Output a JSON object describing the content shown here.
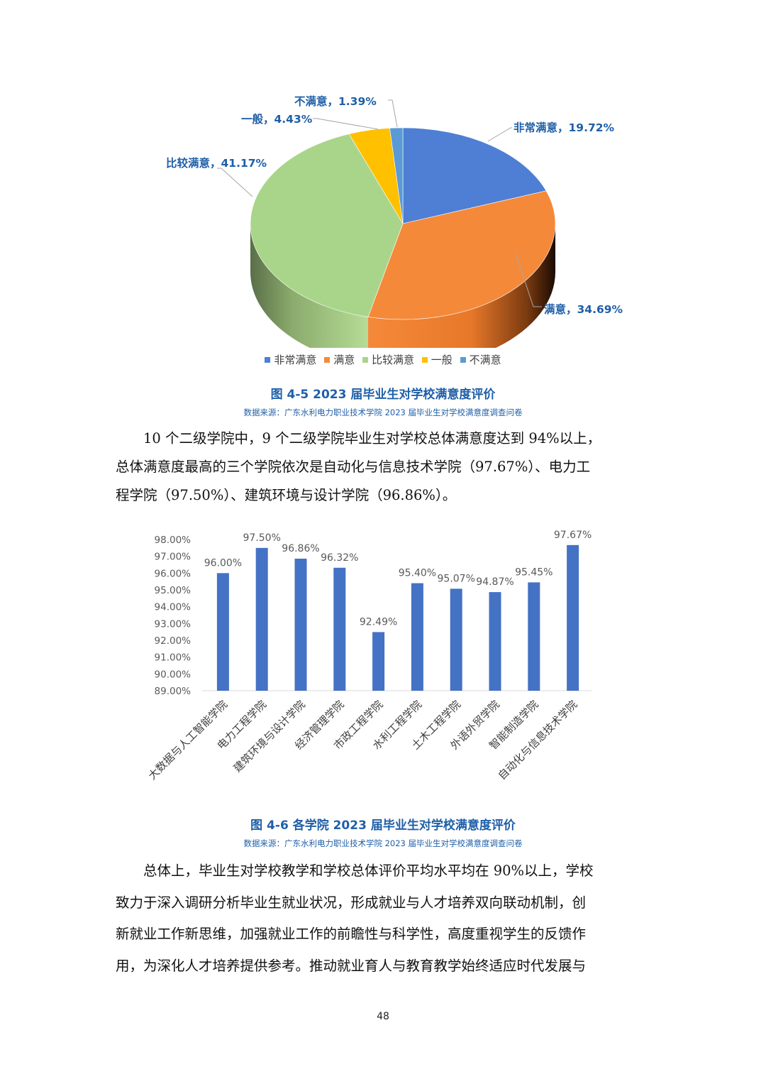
{
  "pie_chart": {
    "slices": [
      {
        "name": "非常满意",
        "label": "非常满意，19.72%",
        "value": 19.72,
        "color": "#4f7fd4"
      },
      {
        "name": "满意",
        "label": "满意，34.69%",
        "value": 34.69,
        "color": "#f5893a"
      },
      {
        "name": "比较满意",
        "label": "比较满意，41.17%",
        "value": 41.17,
        "color": "#a9d58a"
      },
      {
        "name": "一般",
        "label": "一般，4.43%",
        "value": 4.43,
        "color": "#ffc000"
      },
      {
        "name": "不满意",
        "label": "不满意，1.39%",
        "value": 1.39,
        "color": "#5b9bd5"
      }
    ],
    "legend": [
      "非常满意",
      "满意",
      "比较满意",
      "一般",
      "不满意"
    ]
  },
  "figure_4_5": {
    "caption": "图 4-5 2023 届毕业生对学校满意度评价",
    "source": "数据来源：广东水利电力职业技术学院 2023 届毕业生对学校满意度调查问卷"
  },
  "paragraph_1": {
    "lines": [
      "10 个二级学院中，9 个二级学院毕业生对学校总体满意度达到 94%以上，",
      "总体满意度最高的三个学院依次是自动化与信息技术学院（97.67%）、电力工",
      "程学院（97.50%）、建筑环境与设计学院（96.86%）。"
    ]
  },
  "chart_data": [
    {
      "type": "pie",
      "categories": [
        "非常满意",
        "满意",
        "比较满意",
        "一般",
        "不满意"
      ],
      "values": [
        19.72,
        34.69,
        41.17,
        4.43,
        1.39
      ],
      "legend_position": "bottom"
    },
    {
      "type": "bar",
      "categories": [
        "大数据与人工智能学院",
        "电力工程学院",
        "建筑环境与设计学院",
        "经济管理学院",
        "市政工程学院",
        "水利工程学院",
        "土木工程学院",
        "外语外贸学院",
        "智能制造学院",
        "自动化与信息技术学院"
      ],
      "values": [
        96.0,
        97.5,
        96.86,
        96.32,
        92.49,
        95.4,
        95.07,
        94.87,
        95.45,
        97.67
      ],
      "value_labels": [
        "96.00%",
        "97.50%",
        "96.86%",
        "96.32%",
        "92.49%",
        "95.40%",
        "95.07%",
        "94.87%",
        "95.45%",
        "97.67%"
      ],
      "ylim": [
        89,
        98
      ],
      "y_ticks": [
        "89.00%",
        "90.00%",
        "91.00%",
        "92.00%",
        "93.00%",
        "94.00%",
        "95.00%",
        "96.00%",
        "97.00%",
        "98.00%"
      ],
      "bar_color": "#4472c4",
      "grid": false
    }
  ],
  "figure_4_6": {
    "caption": "图 4-6 各学院 2023 届毕业生对学校满意度评价",
    "source": "数据来源：广东水利电力职业技术学院 2023 届毕业生对学校满意度调查问卷"
  },
  "paragraph_2": {
    "lines": [
      "总体上，毕业生对学校教学和学校总体评价平均水平均在 90%以上，学校",
      "致力于深入调研分析毕业生就业状况，形成就业与人才培养双向联动机制，创",
      "新就业工作新思维，加强就业工作的前瞻性与科学性，高度重视学生的反馈作",
      "用，为深化人才培养提供参考。推动就业育人与教育教学始终适应时代发展与"
    ]
  },
  "page_number": "48"
}
